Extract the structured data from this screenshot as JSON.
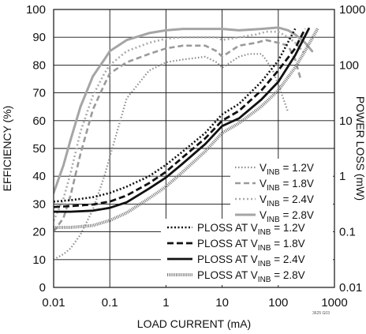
{
  "chart_data": {
    "type": "line",
    "title": "",
    "xlabel": "LOAD CURRENT (mA)",
    "ylabel": "EFFICIENCY (%)",
    "y2label": "POWER LOSS (mW)",
    "x_scale": "log",
    "xlim": [
      0.01,
      1000
    ],
    "ylim": [
      0,
      100
    ],
    "y2_scale": "log",
    "y2lim": [
      0.01,
      1000
    ],
    "x_ticks": [
      "0.01",
      "0.1",
      "1",
      "10",
      "100",
      "1000"
    ],
    "y_ticks": [
      "0",
      "10",
      "20",
      "30",
      "40",
      "50",
      "60",
      "70",
      "80",
      "90",
      "100"
    ],
    "y2_ticks": [
      "0.01",
      "0.1",
      "1",
      "10",
      "100",
      "1000"
    ],
    "grid": true,
    "legend_placement": "bottom-right",
    "footer_code": "3625 G03",
    "series": [
      {
        "name_main": "V",
        "name_sub": "INB",
        "name_rest": " = 1.2V",
        "group": "efficiency",
        "axis": "left",
        "style": "dotted-gray",
        "x": [
          0.01,
          0.015,
          0.02,
          0.03,
          0.05,
          0.08,
          0.1,
          0.2,
          0.5,
          1,
          2,
          5,
          8,
          10,
          20,
          30,
          50,
          60,
          80,
          100,
          150
        ],
        "y": [
          10,
          12,
          14,
          19,
          28,
          40,
          47,
          68,
          78,
          81,
          82,
          83,
          81,
          79,
          83,
          84,
          84,
          82,
          78,
          73,
          63
        ]
      },
      {
        "name_main": "V",
        "name_sub": "INB",
        "name_rest": " = 1.8V",
        "group": "efficiency",
        "axis": "left",
        "style": "dashed-gray",
        "x": [
          0.01,
          0.015,
          0.02,
          0.03,
          0.05,
          0.08,
          0.1,
          0.2,
          0.5,
          1,
          2,
          5,
          8,
          10,
          20,
          40,
          60,
          100,
          150,
          200,
          250
        ],
        "y": [
          20,
          25,
          33,
          48,
          64,
          73,
          77,
          81,
          84,
          86,
          87,
          87,
          85,
          83,
          87,
          88,
          89,
          88,
          87,
          82,
          75
        ]
      },
      {
        "name_main": "V",
        "name_sub": "INB",
        "name_rest": " = 2.4V",
        "group": "efficiency",
        "axis": "left",
        "style": "dotted-lightgray",
        "x": [
          0.01,
          0.015,
          0.02,
          0.03,
          0.05,
          0.08,
          0.1,
          0.2,
          0.5,
          1,
          2,
          5,
          8,
          10,
          20,
          40,
          60,
          100,
          150,
          200,
          300
        ],
        "y": [
          24,
          32,
          41,
          56,
          69,
          77,
          80,
          85,
          88,
          89.5,
          90,
          90,
          90,
          89,
          90,
          91,
          92,
          92,
          90,
          88,
          84
        ]
      },
      {
        "name_main": "V",
        "name_sub": "INB",
        "name_rest": " = 2.8V",
        "group": "efficiency",
        "axis": "left",
        "style": "solid-gray",
        "x": [
          0.01,
          0.015,
          0.02,
          0.03,
          0.05,
          0.08,
          0.1,
          0.2,
          0.5,
          1,
          2,
          5,
          10,
          20,
          50,
          100,
          150,
          200,
          300,
          400
        ],
        "y": [
          34,
          44,
          53,
          65,
          76,
          82,
          85,
          89,
          91.5,
          92.5,
          93,
          93,
          93,
          92.5,
          93,
          93.5,
          92.5,
          91,
          88,
          85
        ]
      },
      {
        "name_main": "PLOSS AT V",
        "name_sub": "INB",
        "name_rest": " = 1.2V",
        "group": "ploss",
        "axis": "right",
        "style": "dotted-black",
        "x": [
          0.01,
          0.02,
          0.05,
          0.1,
          0.2,
          0.5,
          1,
          2,
          5,
          10,
          20,
          50,
          100,
          150,
          200
        ],
        "y": [
          0.35,
          0.37,
          0.42,
          0.5,
          0.65,
          1.0,
          1.6,
          2.8,
          6,
          13,
          20,
          50,
          120,
          260,
          450
        ]
      },
      {
        "name_main": "PLOSS AT V",
        "name_sub": "INB",
        "name_rest": " = 1.8V",
        "group": "ploss",
        "axis": "right",
        "style": "dashed-black",
        "x": [
          0.01,
          0.02,
          0.05,
          0.1,
          0.2,
          0.5,
          1,
          2,
          5,
          10,
          20,
          50,
          100,
          200,
          300
        ],
        "y": [
          0.28,
          0.29,
          0.31,
          0.35,
          0.45,
          0.75,
          1.2,
          2.2,
          4.8,
          10,
          15,
          35,
          80,
          200,
          450
        ]
      },
      {
        "name_main": "PLOSS AT V",
        "name_sub": "INB",
        "name_rest": " = 2.4V",
        "group": "ploss",
        "axis": "right",
        "style": "solid-black",
        "x": [
          0.01,
          0.02,
          0.05,
          0.1,
          0.2,
          0.5,
          1,
          2,
          5,
          10,
          20,
          50,
          100,
          200,
          350
        ],
        "y": [
          0.23,
          0.23,
          0.24,
          0.27,
          0.34,
          0.6,
          0.95,
          1.7,
          3.8,
          8,
          11,
          24,
          50,
          150,
          450
        ]
      },
      {
        "name_main": "PLOSS AT V",
        "name_sub": "INB",
        "name_rest": " = 2.8V",
        "group": "ploss",
        "axis": "right",
        "style": "hatched-gray",
        "x": [
          0.01,
          0.02,
          0.05,
          0.1,
          0.2,
          0.5,
          1,
          2,
          5,
          10,
          20,
          50,
          100,
          200,
          300,
          500
        ],
        "y": [
          0.12,
          0.12,
          0.13,
          0.16,
          0.22,
          0.4,
          0.65,
          1.2,
          2.8,
          6,
          9,
          18,
          35,
          90,
          180,
          450
        ]
      }
    ]
  },
  "styles": {
    "dotted-gray": {
      "color": "#8c8c8c",
      "width": 2.2,
      "dash": "1.5 2.5"
    },
    "dashed-gray": {
      "color": "#9a9a9a",
      "width": 2.6,
      "dash": "7 4"
    },
    "dotted-lightgray": {
      "color": "#aaaaaa",
      "width": 2.6,
      "dash": "2 3"
    },
    "solid-gray": {
      "color": "#a5a5a5",
      "width": 3.0,
      "dash": ""
    },
    "dotted-black": {
      "color": "#111111",
      "width": 2.6,
      "dash": "2 2.5"
    },
    "dashed-black": {
      "color": "#111111",
      "width": 2.8,
      "dash": "8 4"
    },
    "solid-black": {
      "color": "#111111",
      "width": 2.8,
      "dash": ""
    },
    "hatched-gray": {
      "color": "#777777",
      "width": 4.0,
      "dash": "1 1.2"
    }
  }
}
